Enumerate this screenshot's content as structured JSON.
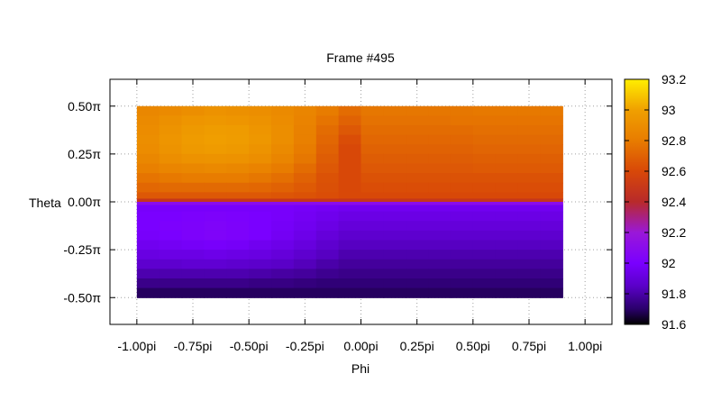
{
  "chart_data": {
    "type": "heatmap",
    "title": "Frame #495",
    "xlabel": "Phi",
    "ylabel": "Theta",
    "xlim": [
      -1.12,
      1.12
    ],
    "ylim": [
      -0.64,
      0.64
    ],
    "x_ticks": [
      {
        "value": -1.0,
        "label": "-1.00pi"
      },
      {
        "value": -0.75,
        "label": "-0.75pi"
      },
      {
        "value": -0.5,
        "label": "-0.50pi"
      },
      {
        "value": -0.25,
        "label": "-0.25pi"
      },
      {
        "value": 0.0,
        "label": "0.00pi"
      },
      {
        "value": 0.25,
        "label": "0.25pi"
      },
      {
        "value": 0.5,
        "label": "0.50pi"
      },
      {
        "value": 0.75,
        "label": "0.75pi"
      },
      {
        "value": 1.0,
        "label": "1.00pi"
      }
    ],
    "y_ticks": [
      {
        "value": 0.5,
        "label": "0.50π"
      },
      {
        "value": 0.25,
        "label": "0.25π"
      },
      {
        "value": 0.0,
        "label": "0.00π"
      },
      {
        "value": -0.25,
        "label": "-0.25π"
      },
      {
        "value": -0.5,
        "label": "-0.50π"
      }
    ],
    "grid": true,
    "data_extent": {
      "x": [
        -1.0,
        0.9
      ],
      "y": [
        -0.5,
        0.5
      ]
    },
    "colorbar": {
      "range": [
        91.6,
        93.2
      ],
      "ticks": [
        {
          "value": 93.2,
          "label": "93.2"
        },
        {
          "value": 93.0,
          "label": "93"
        },
        {
          "value": 92.8,
          "label": "92.8"
        },
        {
          "value": 92.6,
          "label": "92.6"
        },
        {
          "value": 92.4,
          "label": "92.4"
        },
        {
          "value": 92.2,
          "label": "92.2"
        },
        {
          "value": 92.0,
          "label": "92"
        },
        {
          "value": 91.8,
          "label": "91.8"
        },
        {
          "value": 91.6,
          "label": "91.6"
        }
      ],
      "colormap": [
        {
          "value": 91.6,
          "color": "#000000"
        },
        {
          "value": 91.7,
          "color": "#2a006a"
        },
        {
          "value": 91.85,
          "color": "#5a00c8"
        },
        {
          "value": 92.0,
          "color": "#7a00ff"
        },
        {
          "value": 92.2,
          "color": "#9a18d8"
        },
        {
          "value": 92.4,
          "color": "#b82a2a"
        },
        {
          "value": 92.6,
          "color": "#d84808"
        },
        {
          "value": 92.8,
          "color": "#e87c00"
        },
        {
          "value": 93.0,
          "color": "#f0a000"
        },
        {
          "value": 93.2,
          "color": "#ffee00"
        }
      ]
    },
    "cells": {
      "x": [
        -0.95,
        -0.85,
        -0.75,
        -0.65,
        -0.55,
        -0.45,
        -0.35,
        -0.25,
        -0.15,
        -0.05,
        0.05,
        0.15,
        0.25,
        0.35,
        0.45,
        0.55,
        0.65,
        0.75,
        0.85
      ],
      "y": [
        0.475,
        0.425,
        0.375,
        0.325,
        0.275,
        0.225,
        0.175,
        0.125,
        0.075,
        0.025,
        0.008,
        -0.008,
        -0.025,
        -0.075,
        -0.125,
        -0.175,
        -0.225,
        -0.275,
        -0.325,
        -0.375,
        -0.425,
        -0.475
      ],
      "z": [
        [
          92.86,
          92.88,
          92.9,
          92.92,
          92.91,
          92.9,
          92.88,
          92.85,
          92.8,
          92.74,
          92.78,
          92.78,
          92.78,
          92.78,
          92.78,
          92.79,
          92.79,
          92.79,
          92.79
        ],
        [
          92.88,
          92.91,
          92.94,
          92.95,
          92.94,
          92.92,
          92.89,
          92.84,
          92.77,
          92.7,
          92.76,
          92.76,
          92.76,
          92.76,
          92.77,
          92.77,
          92.77,
          92.77,
          92.77
        ],
        [
          92.89,
          92.93,
          92.96,
          92.98,
          92.97,
          92.94,
          92.9,
          92.83,
          92.74,
          92.66,
          92.74,
          92.74,
          92.74,
          92.74,
          92.74,
          92.75,
          92.75,
          92.75,
          92.75
        ],
        [
          92.9,
          92.94,
          92.97,
          92.99,
          92.98,
          92.95,
          92.9,
          92.82,
          92.72,
          92.62,
          92.72,
          92.72,
          92.72,
          92.72,
          92.72,
          92.73,
          92.73,
          92.73,
          92.73
        ],
        [
          92.89,
          92.93,
          92.96,
          92.97,
          92.96,
          92.93,
          92.88,
          92.8,
          92.7,
          92.6,
          92.7,
          92.7,
          92.7,
          92.7,
          92.7,
          92.71,
          92.71,
          92.71,
          92.71
        ],
        [
          92.86,
          92.9,
          92.92,
          92.93,
          92.92,
          92.9,
          92.85,
          92.78,
          92.68,
          92.6,
          92.68,
          92.68,
          92.68,
          92.68,
          92.68,
          92.69,
          92.69,
          92.69,
          92.69
        ],
        [
          92.82,
          92.85,
          92.86,
          92.87,
          92.86,
          92.84,
          92.8,
          92.74,
          92.66,
          92.6,
          92.66,
          92.66,
          92.66,
          92.66,
          92.66,
          92.67,
          92.67,
          92.67,
          92.67
        ],
        [
          92.77,
          92.79,
          92.8,
          92.8,
          92.8,
          92.78,
          92.75,
          92.7,
          92.64,
          92.6,
          92.64,
          92.64,
          92.64,
          92.64,
          92.64,
          92.64,
          92.64,
          92.64,
          92.64
        ],
        [
          92.72,
          92.73,
          92.73,
          92.73,
          92.73,
          92.72,
          92.7,
          92.67,
          92.63,
          92.6,
          92.62,
          92.62,
          92.62,
          92.62,
          92.62,
          92.62,
          92.62,
          92.62,
          92.62
        ],
        [
          92.66,
          92.66,
          92.66,
          92.66,
          92.66,
          92.66,
          92.65,
          92.64,
          92.62,
          92.6,
          92.6,
          92.6,
          92.6,
          92.6,
          92.6,
          92.6,
          92.6,
          92.6,
          92.6
        ],
        [
          92.48,
          92.48,
          92.48,
          92.48,
          92.48,
          92.48,
          92.48,
          92.48,
          92.48,
          92.48,
          92.48,
          92.48,
          92.48,
          92.48,
          92.48,
          92.48,
          92.48,
          92.48,
          92.48
        ],
        [
          92.1,
          92.1,
          92.1,
          92.1,
          92.1,
          92.1,
          92.1,
          92.1,
          92.1,
          92.1,
          92.1,
          92.1,
          92.1,
          92.1,
          92.1,
          92.1,
          92.1,
          92.1,
          92.1
        ],
        [
          91.99,
          91.99,
          91.99,
          91.99,
          91.99,
          91.99,
          91.99,
          91.98,
          91.97,
          91.96,
          91.96,
          91.96,
          91.96,
          91.96,
          91.96,
          91.96,
          91.96,
          91.96,
          91.96
        ],
        [
          92.0,
          92.0,
          92.01,
          92.02,
          92.01,
          92.0,
          91.99,
          91.97,
          91.95,
          91.93,
          91.93,
          91.93,
          91.93,
          91.93,
          91.93,
          91.93,
          91.93,
          91.93,
          91.93
        ],
        [
          92.0,
          92.01,
          92.02,
          92.03,
          92.02,
          92.0,
          91.98,
          91.96,
          91.93,
          91.9,
          91.9,
          91.9,
          91.9,
          91.9,
          91.9,
          91.9,
          91.9,
          91.9,
          91.9
        ],
        [
          91.99,
          92.0,
          92.02,
          92.03,
          92.02,
          92.0,
          91.97,
          91.94,
          91.9,
          91.87,
          91.87,
          91.87,
          91.87,
          91.87,
          91.87,
          91.87,
          91.87,
          91.87,
          91.87
        ],
        [
          91.96,
          91.97,
          91.98,
          91.99,
          91.98,
          91.96,
          91.94,
          91.91,
          91.87,
          91.84,
          91.84,
          91.84,
          91.84,
          91.84,
          91.84,
          91.84,
          91.84,
          91.84,
          91.84
        ],
        [
          91.92,
          91.93,
          91.93,
          91.94,
          91.93,
          91.92,
          91.9,
          91.87,
          91.84,
          91.81,
          91.81,
          91.81,
          91.81,
          91.81,
          91.81,
          91.81,
          91.81,
          91.81,
          91.81
        ],
        [
          91.87,
          91.87,
          91.88,
          91.88,
          91.87,
          91.86,
          91.85,
          91.83,
          91.8,
          91.78,
          91.78,
          91.78,
          91.78,
          91.78,
          91.78,
          91.78,
          91.78,
          91.78,
          91.78
        ],
        [
          91.81,
          91.81,
          91.81,
          91.81,
          91.81,
          91.8,
          91.79,
          91.78,
          91.76,
          91.75,
          91.75,
          91.75,
          91.75,
          91.75,
          91.75,
          91.75,
          91.75,
          91.75,
          91.75
        ],
        [
          91.75,
          91.75,
          91.75,
          91.75,
          91.75,
          91.74,
          91.74,
          91.73,
          91.72,
          91.72,
          91.72,
          91.72,
          91.72,
          91.72,
          91.72,
          91.72,
          91.72,
          91.72,
          91.72
        ],
        [
          91.69,
          91.69,
          91.69,
          91.69,
          91.69,
          91.69,
          91.69,
          91.69,
          91.69,
          91.69,
          91.69,
          91.69,
          91.69,
          91.69,
          91.69,
          91.69,
          91.69,
          91.69,
          91.69
        ]
      ]
    }
  }
}
